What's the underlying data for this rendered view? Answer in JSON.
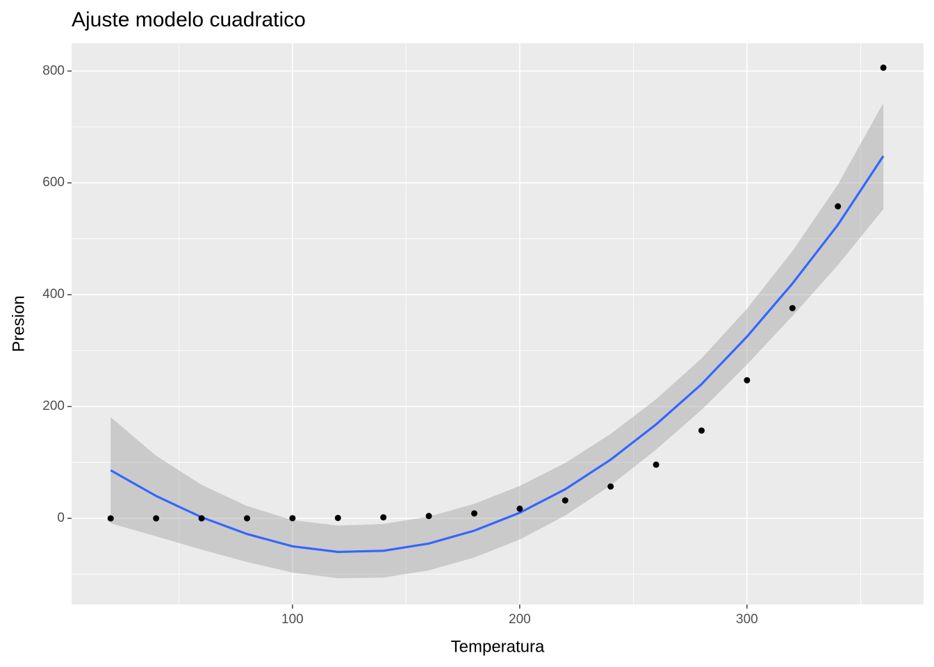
{
  "chart_data": {
    "type": "scatter",
    "title": "Ajuste modelo cuadratico",
    "x_label": "Temperatura",
    "y_label": "Presion",
    "x": [
      20,
      40,
      60,
      80,
      100,
      120,
      140,
      160,
      180,
      200,
      220,
      240,
      260,
      280,
      300,
      320,
      340,
      360
    ],
    "values": [
      0.0012,
      0.006,
      0.03,
      0.09,
      0.27,
      0.75,
      1.85,
      4.2,
      8.8,
      17.3,
      32.1,
      57,
      96,
      157,
      247,
      376,
      558,
      806
    ],
    "point_color": "#000000",
    "fit": {
      "color": "#3366ff",
      "band_color": "#999999",
      "values": [
        86,
        40,
        2,
        -28,
        -50,
        -60,
        -58,
        -45,
        -22,
        10,
        52,
        105,
        168,
        240,
        325,
        420,
        525,
        648
      ],
      "lower": [
        -9,
        -32,
        -56,
        -78,
        -97,
        -107,
        -106,
        -93,
        -70,
        -38,
        5,
        59,
        123,
        194,
        275,
        362,
        453,
        553
      ],
      "upper": [
        181,
        112,
        60,
        22,
        -3,
        -13,
        -10,
        3,
        26,
        58,
        99,
        151,
        213,
        286,
        375,
        478,
        597,
        743
      ]
    },
    "xlim": [
      2.8,
      377.7
    ],
    "ylim": [
      -154,
      850
    ],
    "xticks": [
      100,
      200,
      300
    ],
    "yticks": [
      0,
      200,
      400,
      600,
      800
    ],
    "grid": true
  }
}
